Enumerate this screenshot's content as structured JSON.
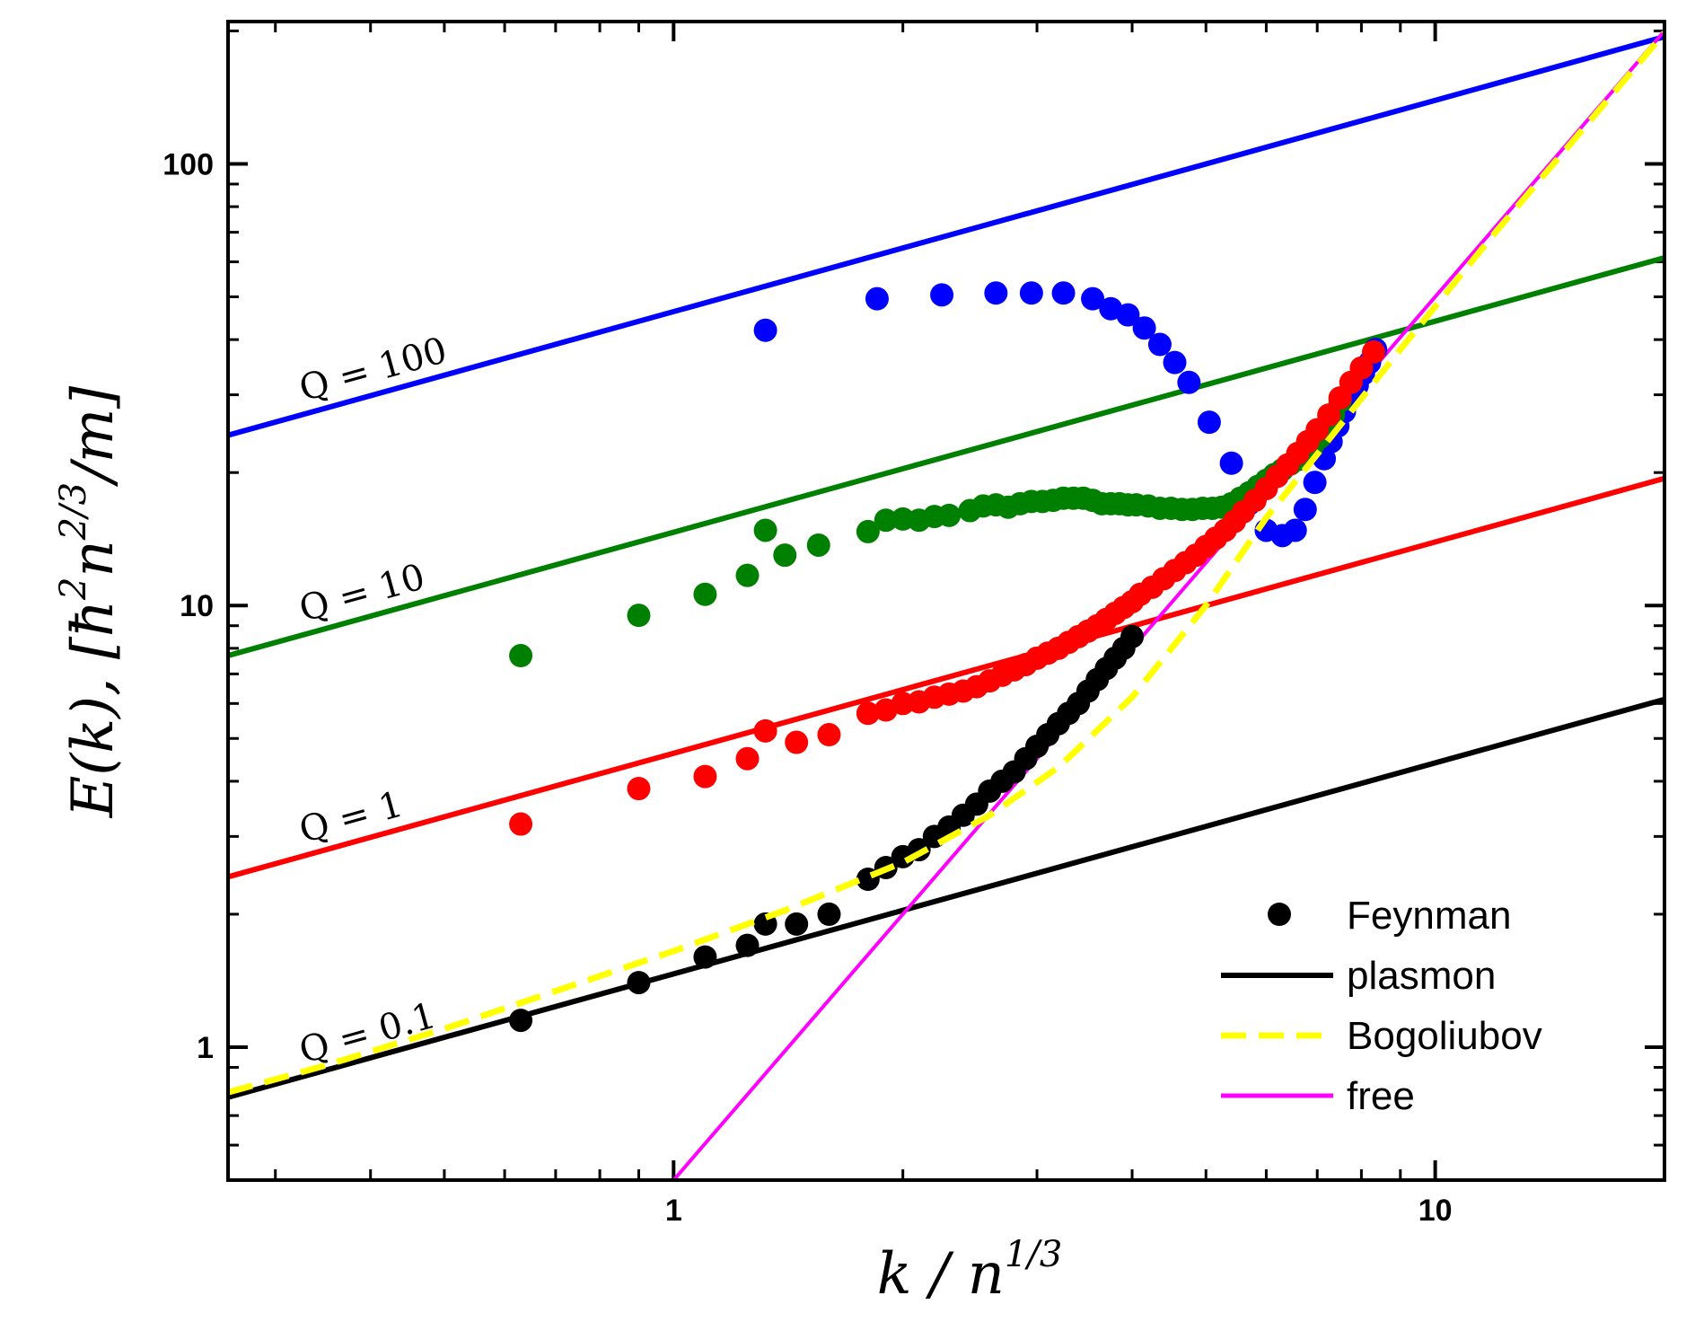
{
  "chart_data": {
    "type": "scatter",
    "xscale": "log",
    "yscale": "log",
    "xlim": [
      0.26,
      20
    ],
    "ylim": [
      0.5,
      210
    ],
    "xticks": [
      {
        "value": 1,
        "label": "1"
      },
      {
        "value": 10,
        "label": "10"
      }
    ],
    "yticks": [
      {
        "value": 1,
        "label": "1"
      },
      {
        "value": 10,
        "label": "10"
      },
      {
        "value": 100,
        "label": "100"
      }
    ],
    "xlabel": {
      "main": "k / n",
      "sup": "1/3"
    },
    "ylabel": {
      "pre": "E(k), [ħ",
      "sup1": "2",
      "mid": "n",
      "sup2": "2/3",
      "post": "/m]"
    },
    "legend": [
      {
        "label": "Feynman",
        "marker": "dot",
        "color": "#000000"
      },
      {
        "label": "plasmon",
        "marker": "solid",
        "color": "#000000"
      },
      {
        "label": "Bogoliubov",
        "marker": "dashed",
        "color": "#ffff00"
      },
      {
        "label": "free",
        "marker": "solid",
        "color": "#ff00ff"
      }
    ],
    "colors": {
      "q100": "#0000ff",
      "q10": "#008000",
      "q1": "#ff0000",
      "q01": "#000000",
      "free": "#ff00ff",
      "bogoliubov": "#ffff00"
    },
    "plasmon_lines": [
      {
        "name": "Q = 100",
        "Q": 100,
        "color": "#0000ff",
        "x": [
          0.26,
          20
        ],
        "y": [
          24.3,
          194
        ]
      },
      {
        "name": "Q = 10",
        "Q": 10,
        "color": "#008000",
        "x": [
          0.26,
          20
        ],
        "y": [
          7.7,
          61.3
        ]
      },
      {
        "name": "Q = 1",
        "Q": 1,
        "color": "#ff0000",
        "x": [
          0.26,
          20
        ],
        "y": [
          2.43,
          19.4
        ]
      },
      {
        "name": "Q = 0.1",
        "Q": 0.1,
        "color": "#000000",
        "x": [
          0.26,
          20
        ],
        "y": [
          0.77,
          6.13
        ]
      }
    ],
    "q_labels": [
      "Q = 100",
      "Q = 10",
      "Q = 1",
      "Q = 0.1"
    ],
    "free_line": {
      "x": [
        1.0,
        20
      ],
      "y": [
        0.5,
        200
      ]
    },
    "bogoliubov_curve": {
      "x": [
        0.26,
        0.35,
        0.5,
        0.7,
        1.0,
        1.4,
        2.0,
        2.6,
        3.2,
        4.0,
        5.0,
        6.0,
        7.0,
        9.0,
        12.0,
        20.0
      ],
      "y": [
        0.79,
        0.91,
        1.1,
        1.34,
        1.65,
        2.04,
        2.62,
        3.35,
        4.3,
        6.2,
        10.0,
        15.8,
        22.0,
        38.0,
        70.0,
        198.0
      ]
    },
    "series": [
      {
        "name": "Feynman Q = 100",
        "color": "#0000ff",
        "x": [
          1.32,
          1.85,
          2.25,
          2.65,
          2.95,
          3.25,
          3.55,
          3.75,
          3.95,
          4.15,
          4.35,
          4.55,
          4.75,
          5.05,
          5.4,
          5.7,
          6.0,
          6.3,
          6.55,
          6.75,
          6.95,
          7.15,
          7.3,
          7.45,
          7.6,
          7.75,
          7.9,
          8.05,
          8.2,
          8.35
        ],
        "y": [
          42.0,
          49.5,
          50.5,
          51.0,
          51.0,
          51.0,
          49.5,
          47.0,
          45.5,
          42.5,
          39.0,
          35.5,
          32.0,
          26.0,
          21.0,
          17.0,
          14.8,
          14.4,
          14.8,
          16.5,
          19.0,
          21.5,
          23.5,
          25.5,
          27.5,
          29.5,
          31.5,
          33.5,
          35.5,
          38.0
        ]
      },
      {
        "name": "Feynman Q = 10",
        "color": "#008000",
        "x": [
          0.63,
          0.9,
          1.1,
          1.25,
          1.32,
          1.4,
          1.55,
          1.8,
          1.9,
          2.0,
          2.1,
          2.2,
          2.3,
          2.45,
          2.55,
          2.65,
          2.75,
          2.85,
          2.95,
          3.05,
          3.15,
          3.25,
          3.35,
          3.45,
          3.55,
          3.65,
          3.75,
          3.85,
          3.95,
          4.05,
          4.2,
          4.35,
          4.5,
          4.65,
          4.8,
          4.95,
          5.1,
          5.25,
          5.4,
          5.55,
          5.7,
          5.85,
          6.0,
          6.15,
          6.3,
          6.45,
          6.6,
          6.75,
          6.9,
          7.05,
          7.2,
          7.35,
          7.5
        ],
        "y": [
          7.7,
          9.5,
          10.6,
          11.7,
          14.8,
          13.0,
          13.7,
          14.7,
          15.6,
          15.7,
          15.6,
          15.9,
          16.0,
          16.4,
          16.8,
          16.9,
          16.7,
          17.0,
          17.2,
          17.2,
          17.3,
          17.5,
          17.5,
          17.5,
          17.3,
          17.0,
          17.0,
          17.0,
          16.9,
          16.9,
          16.8,
          16.6,
          16.6,
          16.5,
          16.5,
          16.6,
          16.6,
          16.7,
          17.0,
          17.5,
          18.0,
          18.6,
          19.2,
          19.8,
          20.3,
          20.9,
          21.4,
          22.0,
          23.0,
          24.0,
          25.5,
          27.0,
          29.0
        ]
      },
      {
        "name": "Feynman Q = 1",
        "color": "#ff0000",
        "x": [
          0.63,
          0.9,
          1.1,
          1.25,
          1.32,
          1.45,
          1.6,
          1.8,
          1.9,
          2.0,
          2.1,
          2.2,
          2.3,
          2.4,
          2.5,
          2.6,
          2.7,
          2.8,
          2.9,
          3.0,
          3.1,
          3.2,
          3.3,
          3.4,
          3.5,
          3.6,
          3.7,
          3.8,
          3.9,
          4.0,
          4.1,
          4.25,
          4.4,
          4.55,
          4.7,
          4.85,
          5.0,
          5.15,
          5.3,
          5.45,
          5.6,
          5.8,
          6.0,
          6.2,
          6.4,
          6.6,
          6.8,
          7.0,
          7.25,
          7.5,
          7.75,
          8.0,
          8.3
        ],
        "y": [
          3.2,
          3.85,
          4.1,
          4.5,
          5.2,
          4.9,
          5.1,
          5.7,
          5.8,
          6.0,
          6.05,
          6.2,
          6.3,
          6.4,
          6.55,
          6.75,
          6.95,
          7.15,
          7.35,
          7.6,
          7.8,
          8.0,
          8.25,
          8.5,
          8.75,
          9.0,
          9.3,
          9.6,
          9.9,
          10.2,
          10.6,
          11.0,
          11.5,
          12.0,
          12.5,
          13.0,
          13.6,
          14.2,
          14.8,
          15.5,
          16.3,
          17.3,
          18.4,
          19.6,
          20.8,
          22.1,
          23.5,
          25.0,
          27.0,
          29.5,
          32.0,
          34.5,
          37.5
        ]
      },
      {
        "name": "Feynman Q = 0.1",
        "color": "#000000",
        "x": [
          0.63,
          0.9,
          1.1,
          1.25,
          1.32,
          1.45,
          1.6,
          1.8,
          1.9,
          2.0,
          2.1,
          2.2,
          2.3,
          2.4,
          2.5,
          2.6,
          2.7,
          2.8,
          2.9,
          3.0,
          3.1,
          3.2,
          3.3,
          3.4,
          3.5,
          3.6,
          3.7,
          3.8,
          3.9,
          4.0
        ],
        "y": [
          1.15,
          1.4,
          1.6,
          1.7,
          1.9,
          1.9,
          2.0,
          2.4,
          2.55,
          2.7,
          2.8,
          3.0,
          3.15,
          3.35,
          3.55,
          3.8,
          4.0,
          4.2,
          4.5,
          4.8,
          5.1,
          5.4,
          5.7,
          6.0,
          6.4,
          6.8,
          7.2,
          7.6,
          8.0,
          8.5
        ]
      }
    ]
  }
}
